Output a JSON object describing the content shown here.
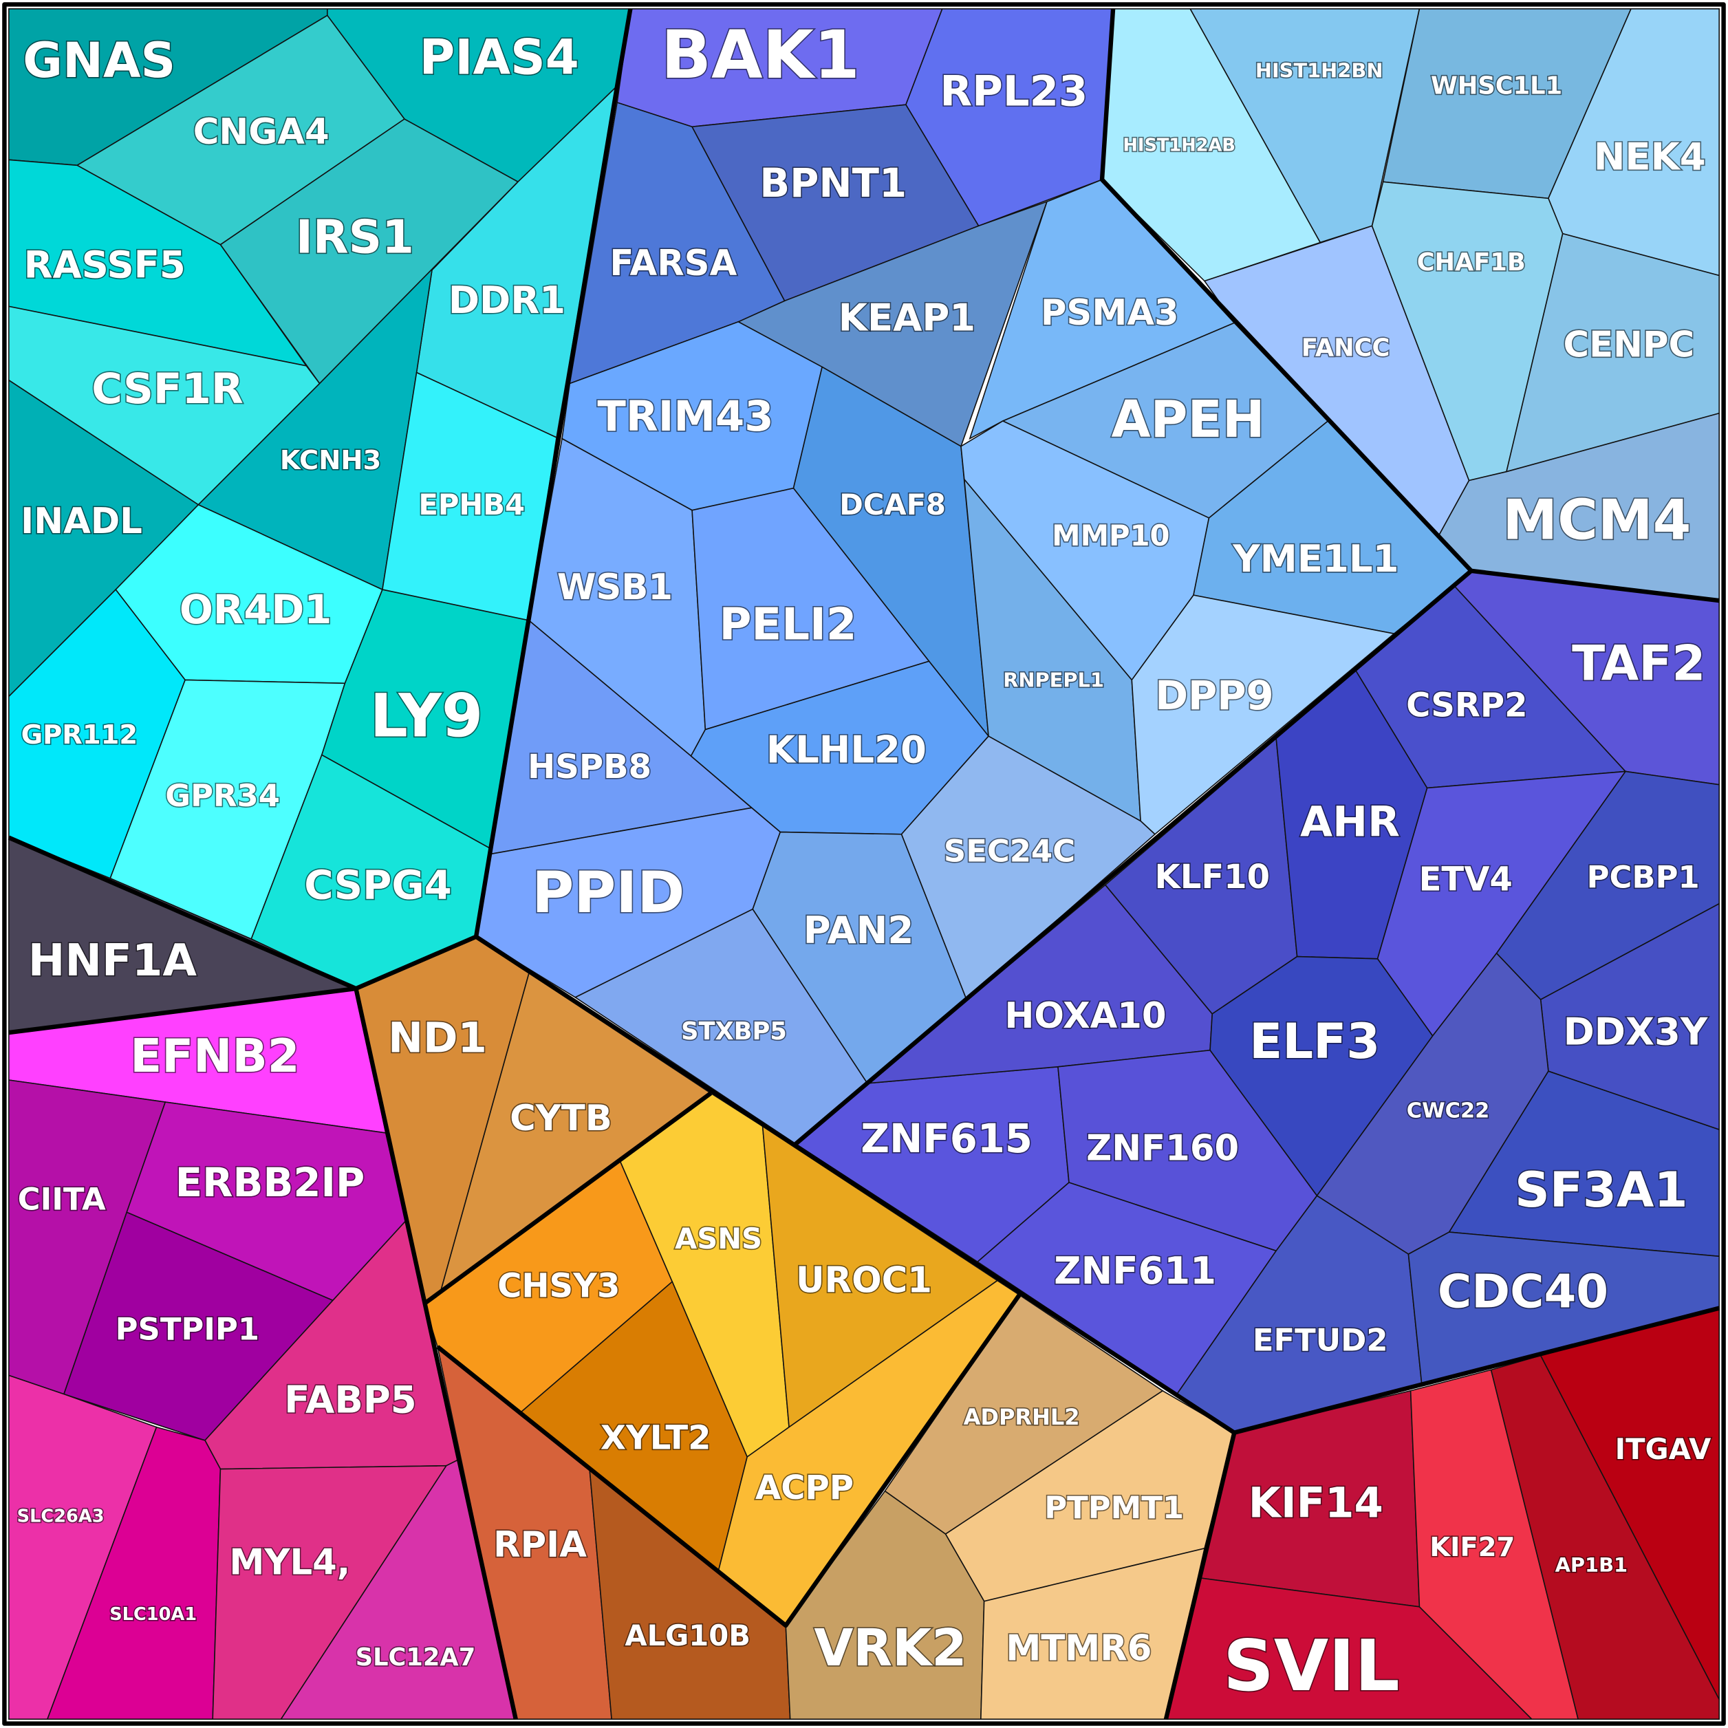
{
  "cells": [
    "GNAS",
    "PIAS4",
    "CNGA4",
    "IRS1",
    "RASSF5",
    "CSF1R",
    "INADL",
    "DDR1",
    "KCNH3",
    "EPHB4",
    "OR4D1",
    "GPR112",
    "GPR34",
    "LY9",
    "CSPG4",
    "HNF1A",
    "EFNB2",
    "CIITA",
    "ERBB2IP",
    "PSTPIP1",
    "FABP5",
    "SLC26A3",
    "SLC10A1",
    "MYL4,",
    "SLC12A7",
    "ND1",
    "CYTB",
    "CHSY3",
    "ASNS",
    "UROC1",
    "XYLT2",
    "ACPP",
    "RPIA",
    "ALG10B",
    "ADPRHL2",
    "PTPMT1",
    "VRK2",
    "MTMR6",
    "KIF14",
    "SVIL",
    "KIF27",
    "AP1B1",
    "ITGAV",
    "ZNF615",
    "HOXA10",
    "KLF10",
    "AHR",
    "CSRP2",
    "TAF2",
    "ETV4",
    "PCBP1",
    "DDX3Y",
    "ELF3",
    "ZNF160",
    "ZNF611",
    "CWC22",
    "SF3A1",
    "EFTUD2",
    "CDC40",
    "HIST1H2AB",
    "HIST1H2BN",
    "WHSC1L1",
    "NEK4",
    "FANCC",
    "CHAF1B",
    "CENPC",
    "MCM4",
    "BAK1",
    "RPL23",
    "FARSA",
    "BPNT1",
    "KEAP1",
    "PSMA3",
    "APEH",
    "TRIM43",
    "DCAF8",
    "WSB1",
    "PELI2",
    "MMP10",
    "YME1L1",
    "RNPEPL1",
    "DPP9",
    "HSPB8",
    "KLHL20",
    "PPID",
    "SEC24C",
    "PAN2",
    "STXBP5"
  ]
}
